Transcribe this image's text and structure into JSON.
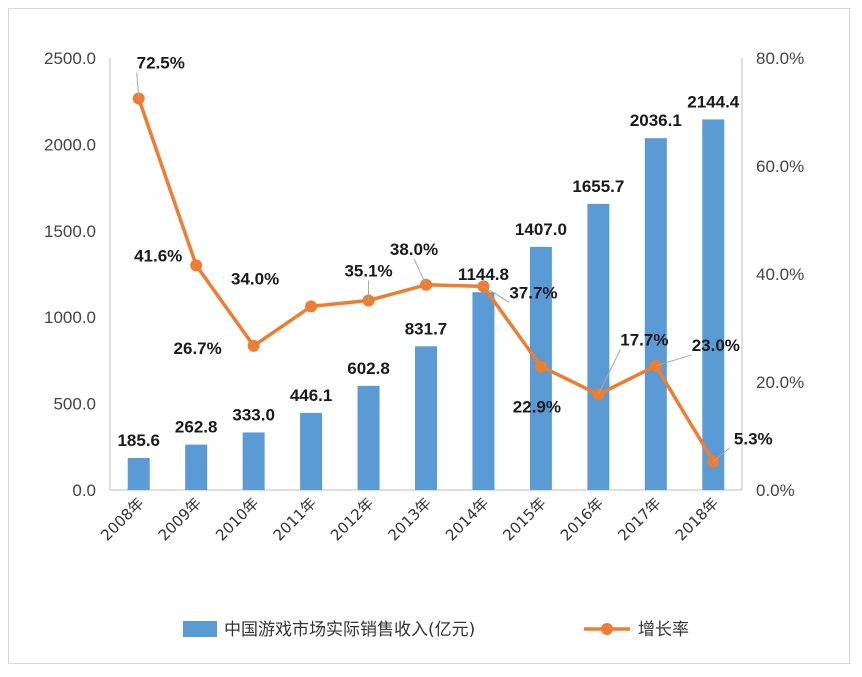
{
  "chart_data": {
    "type": "bar+line",
    "categories": [
      "2008年",
      "2009年",
      "2010年",
      "2011年",
      "2012年",
      "2013年",
      "2014年",
      "2015年",
      "2016年",
      "2017年",
      "2018年"
    ],
    "series": [
      {
        "name": "中国游戏市场实际销售收入(亿元)",
        "type": "bar",
        "axis": "left",
        "color": "#5b9bd5",
        "values": [
          185.6,
          262.8,
          333.0,
          446.1,
          602.8,
          831.7,
          1144.8,
          1407.0,
          1655.7,
          2036.1,
          2144.4
        ],
        "labels": [
          "185.6",
          "262.8",
          "333.0",
          "446.1",
          "602.8",
          "831.7",
          "1144.8",
          "1407.0",
          "1655.7",
          "2036.1",
          "2144.4"
        ]
      },
      {
        "name": "增长率",
        "type": "line",
        "axis": "right",
        "color": "#ed7d31",
        "values": [
          72.5,
          41.6,
          26.7,
          34.0,
          35.1,
          38.0,
          37.7,
          22.9,
          17.7,
          23.0,
          5.3
        ],
        "labels": [
          "72.5%",
          "41.6%",
          "26.7%",
          "34.0%",
          "35.1%",
          "38.0%",
          "37.7%",
          "22.9%",
          "17.7%",
          "23.0%",
          "5.3%"
        ]
      }
    ],
    "y_left": {
      "min": 0,
      "max": 2500,
      "ticks": [
        "0.0",
        "500.0",
        "1000.0",
        "1500.0",
        "2000.0",
        "2500.0"
      ]
    },
    "y_right": {
      "min": 0,
      "max": 80,
      "ticks": [
        "0.0%",
        "20.0%",
        "40.0%",
        "60.0%",
        "80.0%"
      ]
    },
    "legend_position": "bottom"
  }
}
